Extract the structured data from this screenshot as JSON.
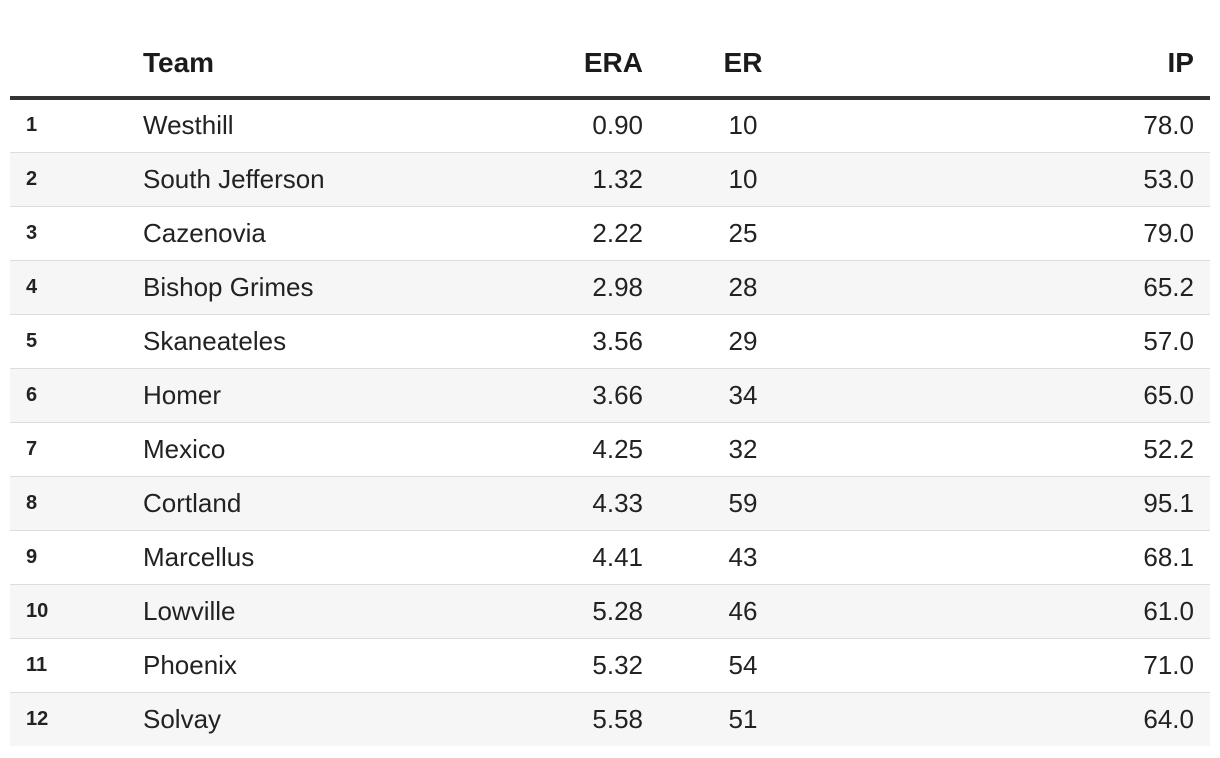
{
  "chart_data": {
    "type": "table",
    "columns": [
      "",
      "Team",
      "ERA",
      "ER",
      "IP"
    ],
    "rows": [
      {
        "rank": "1",
        "team": "Westhill",
        "era": "0.90",
        "er": "10",
        "ip": "78.0"
      },
      {
        "rank": "2",
        "team": "South Jefferson",
        "era": "1.32",
        "er": "10",
        "ip": "53.0"
      },
      {
        "rank": "3",
        "team": "Cazenovia",
        "era": "2.22",
        "er": "25",
        "ip": "79.0"
      },
      {
        "rank": "4",
        "team": "Bishop Grimes",
        "era": "2.98",
        "er": "28",
        "ip": "65.2"
      },
      {
        "rank": "5",
        "team": "Skaneateles",
        "era": "3.56",
        "er": "29",
        "ip": "57.0"
      },
      {
        "rank": "6",
        "team": "Homer",
        "era": "3.66",
        "er": "34",
        "ip": "65.0"
      },
      {
        "rank": "7",
        "team": "Mexico",
        "era": "4.25",
        "er": "32",
        "ip": "52.2"
      },
      {
        "rank": "8",
        "team": "Cortland",
        "era": "4.33",
        "er": "59",
        "ip": "95.1"
      },
      {
        "rank": "9",
        "team": "Marcellus",
        "era": "4.41",
        "er": "43",
        "ip": "68.1"
      },
      {
        "rank": "10",
        "team": "Lowville",
        "era": "5.28",
        "er": "46",
        "ip": "61.0"
      },
      {
        "rank": "11",
        "team": "Phoenix",
        "era": "5.32",
        "er": "54",
        "ip": "71.0"
      },
      {
        "rank": "12",
        "team": "Solvay",
        "era": "5.58",
        "er": "51",
        "ip": "64.0"
      }
    ]
  },
  "colors": {
    "header_rule": "#333333",
    "row_divider": "#dddddd",
    "stripe": "#f6f6f6"
  }
}
